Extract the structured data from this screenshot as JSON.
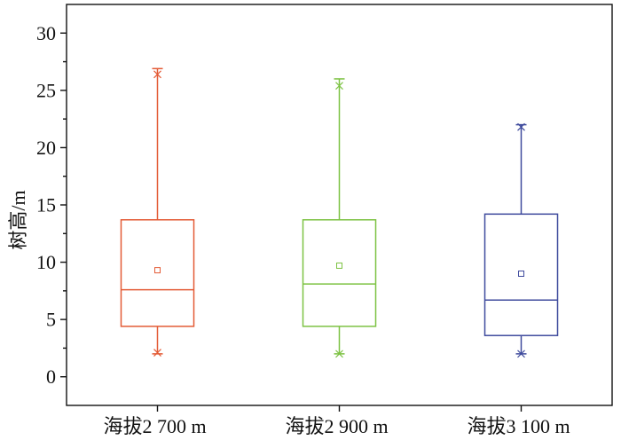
{
  "chart_data": {
    "type": "box",
    "categories": [
      "海拔2 700 m",
      "海拔2 900 m",
      "海拔3 100 m"
    ],
    "ylabel": "树高/m",
    "ylim": [
      -2.5,
      32.5
    ],
    "yticks": [
      0,
      5,
      10,
      15,
      20,
      25,
      30
    ],
    "grid": false,
    "legend": "none",
    "series": [
      {
        "color": "#E35B36",
        "min": 2.0,
        "p1": 2.1,
        "q1": 4.4,
        "median": 7.6,
        "q3": 13.7,
        "p99": 26.4,
        "max": 26.9,
        "mean": 9.3
      },
      {
        "color": "#7DC243",
        "min": 2.0,
        "p1": 2.0,
        "q1": 4.4,
        "median": 8.1,
        "q3": 13.7,
        "p99": 25.4,
        "max": 26.0,
        "mean": 9.7
      },
      {
        "color": "#3F4B9D",
        "min": 2.0,
        "p1": 2.0,
        "q1": 3.6,
        "median": 6.7,
        "q3": 14.2,
        "p99": 21.8,
        "max": 22.0,
        "mean": 9.0
      }
    ]
  }
}
